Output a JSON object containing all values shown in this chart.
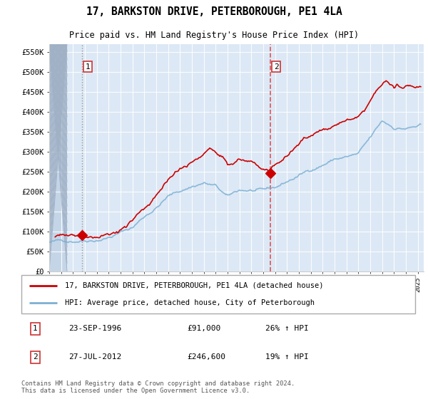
{
  "title": "17, BARKSTON DRIVE, PETERBOROUGH, PE1 4LA",
  "subtitle": "Price paid vs. HM Land Registry's House Price Index (HPI)",
  "footer": "Contains HM Land Registry data © Crown copyright and database right 2024.\nThis data is licensed under the Open Government Licence v3.0.",
  "legend_line1": "17, BARKSTON DRIVE, PETERBOROUGH, PE1 4LA (detached house)",
  "legend_line2": "HPI: Average price, detached house, City of Peterborough",
  "transaction1_label": "1",
  "transaction1_date": "23-SEP-1996",
  "transaction1_price": "£91,000",
  "transaction1_hpi": "26% ↑ HPI",
  "transaction2_label": "2",
  "transaction2_date": "27-JUL-2012",
  "transaction2_price": "£246,600",
  "transaction2_hpi": "19% ↑ HPI",
  "red_color": "#cc0000",
  "blue_color": "#7bafd4",
  "dashed_line1_color": "#aaaaaa",
  "dashed_line2_color": "#dd4444",
  "background_plot": "#dce8f5",
  "background_hatch_color": "#c5d5e8",
  "ylim": [
    0,
    570000
  ],
  "yticks": [
    0,
    50000,
    100000,
    150000,
    200000,
    250000,
    300000,
    350000,
    400000,
    450000,
    500000,
    550000
  ],
  "t1_x": 1996.73,
  "t1_y": 91000,
  "t2_x": 2012.58,
  "t2_y": 246600,
  "xmin": 1994.0,
  "xmax": 2025.5,
  "hatch_end": 1995.5
}
